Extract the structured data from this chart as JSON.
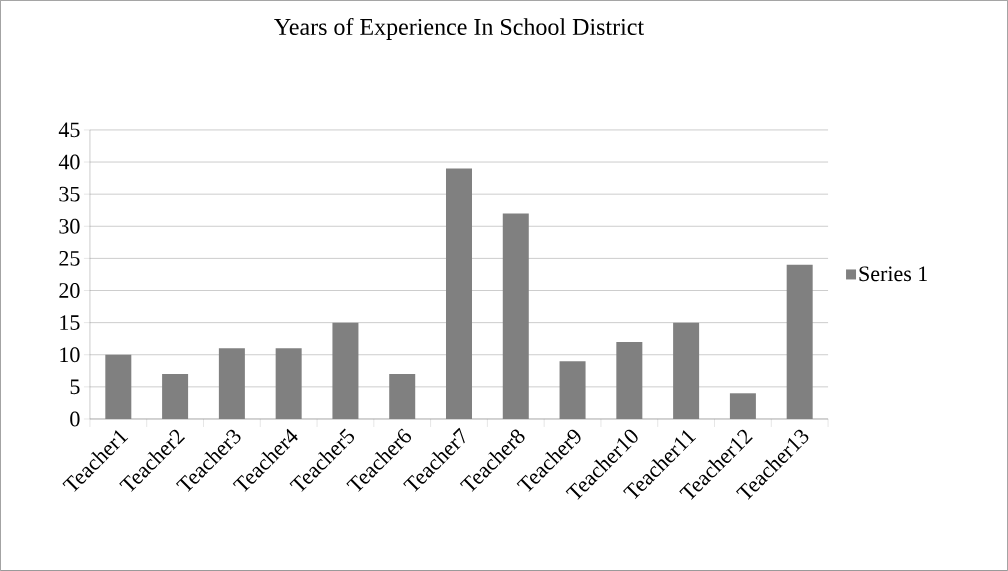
{
  "chart_data": {
    "type": "bar",
    "title": "Years of Experience In School District",
    "categories": [
      "Teacher1",
      "Teacher2",
      "Teacher3",
      "Teacher4",
      "Teacher5",
      "Teacher6",
      "Teacher7",
      "Teacher8",
      "Teacher9",
      "Teacher10",
      "Teacher11",
      "Teacher12",
      "Teacher13"
    ],
    "series": [
      {
        "name": "Series 1",
        "color": "#808080",
        "values": [
          10,
          7,
          11,
          11,
          15,
          7,
          39,
          32,
          9,
          12,
          15,
          4,
          24
        ]
      }
    ],
    "ylim": [
      0,
      45
    ],
    "yticks": [
      0,
      5,
      10,
      15,
      20,
      25,
      30,
      35,
      40,
      45
    ],
    "grid": "y",
    "legend": "right"
  }
}
